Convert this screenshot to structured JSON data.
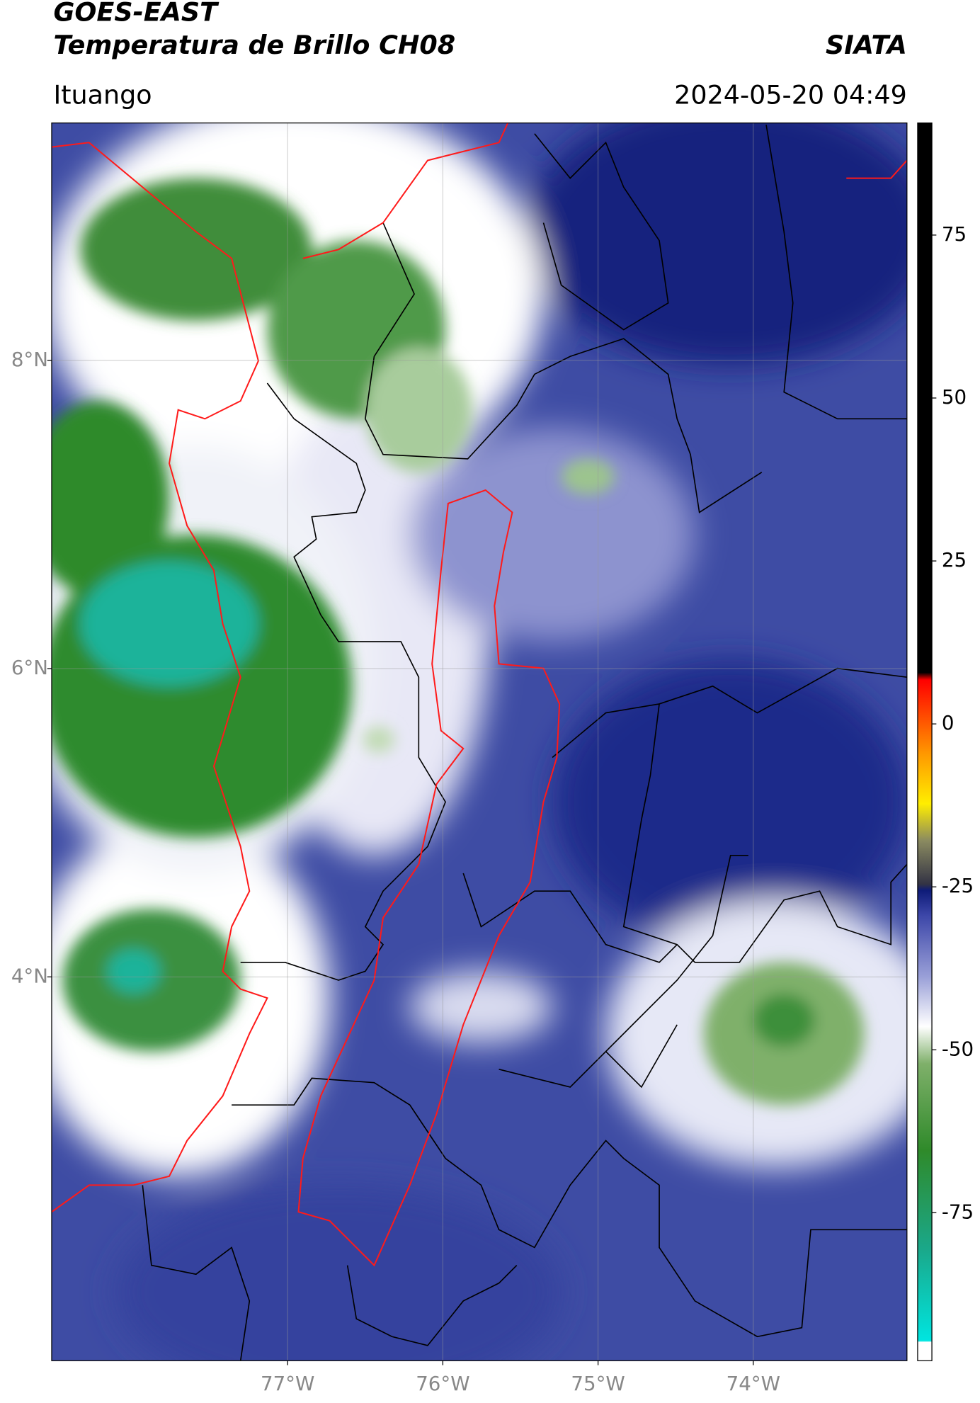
{
  "header": {
    "title": "GOES-EAST",
    "subtitle": "Temperatura de Brillo CH08",
    "org": "SIATA",
    "region": "Ituango",
    "datetime": "2024-05-20 04:49"
  },
  "map": {
    "xlim": [
      -78.52,
      -73.01
    ],
    "ylim": [
      1.51,
      9.54
    ],
    "xticks": [
      {
        "value": -77,
        "label": "77°W"
      },
      {
        "value": -76,
        "label": "76°W"
      },
      {
        "value": -75,
        "label": "75°W"
      },
      {
        "value": -74,
        "label": "74°W"
      }
    ],
    "yticks": [
      {
        "value": 4,
        "label": "4°N"
      },
      {
        "value": 6,
        "label": "6°N"
      },
      {
        "value": 8,
        "label": "8°N"
      }
    ],
    "grid": true
  },
  "colorbar": {
    "lim": [
      -97.7,
      92.2
    ],
    "ticks": [
      -75,
      -50,
      -25,
      0,
      25,
      50,
      75
    ]
  }
}
